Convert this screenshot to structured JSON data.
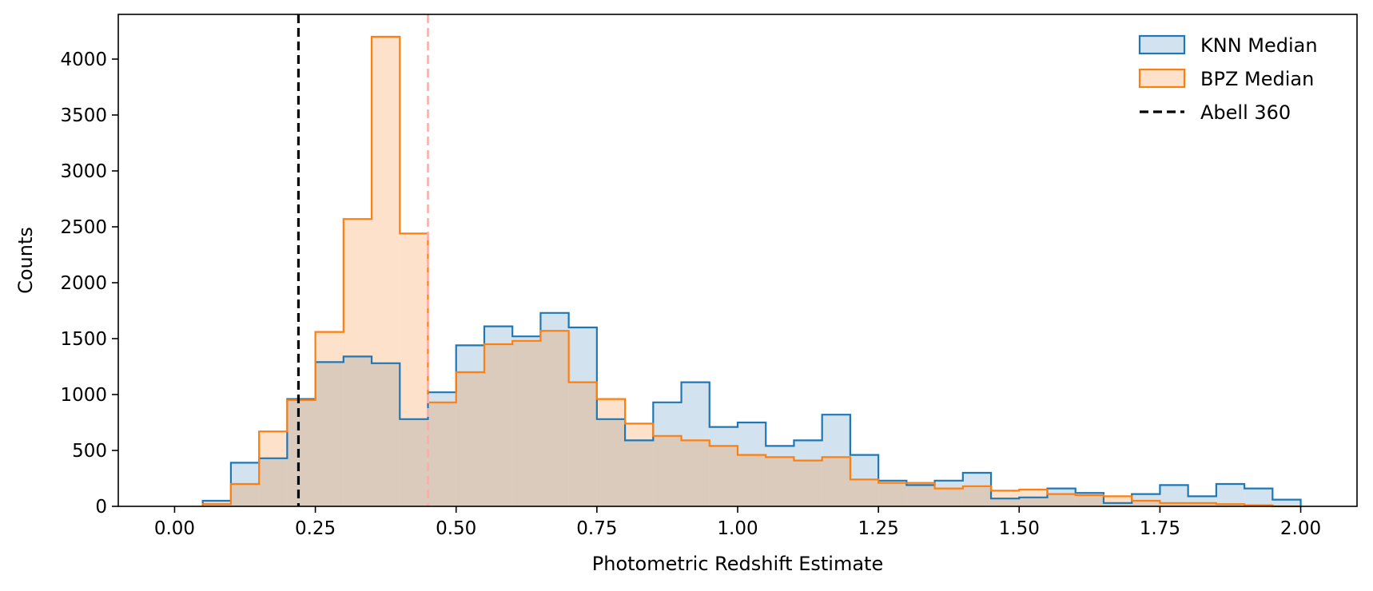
{
  "chart_data": {
    "type": "histogram",
    "xlabel": "Photometric Redshift Estimate",
    "ylabel": "Counts",
    "xlim": [
      -0.1,
      2.1
    ],
    "ylim": [
      0,
      4400
    ],
    "xticks": [
      0.0,
      0.25,
      0.5,
      0.75,
      1.0,
      1.25,
      1.5,
      1.75,
      2.0
    ],
    "xtick_labels": [
      "0.00",
      "0.25",
      "0.50",
      "0.75",
      "1.00",
      "1.25",
      "1.50",
      "1.75",
      "2.00"
    ],
    "yticks": [
      0,
      500,
      1000,
      1500,
      2000,
      2500,
      3000,
      3500,
      4000
    ],
    "ytick_labels": [
      "0",
      "500",
      "1000",
      "1500",
      "2000",
      "2500",
      "3000",
      "3500",
      "4000"
    ],
    "grid": false,
    "legend_position": "top-right",
    "bin_edges": [
      0.05,
      0.1,
      0.15,
      0.2,
      0.25,
      0.3,
      0.35,
      0.4,
      0.45,
      0.5,
      0.55,
      0.6,
      0.65,
      0.7,
      0.75,
      0.8,
      0.85,
      0.9,
      0.95,
      1.0,
      1.05,
      1.1,
      1.15,
      1.2,
      1.25,
      1.3,
      1.35,
      1.4,
      1.45,
      1.5,
      1.55,
      1.6,
      1.65,
      1.7,
      1.75,
      1.8,
      1.85,
      1.9,
      1.95,
      2.0
    ],
    "series": [
      {
        "name": "KNN Median",
        "edge_color": "#1f77b4",
        "fill_color": "#d2e3ef",
        "counts": [
          50,
          390,
          430,
          960,
          1290,
          1340,
          1280,
          780,
          1020,
          1440,
          1610,
          1520,
          1730,
          1600,
          780,
          590,
          930,
          1110,
          710,
          750,
          540,
          590,
          820,
          460,
          230,
          190,
          230,
          300,
          70,
          80,
          160,
          120,
          30,
          110,
          190,
          90,
          200,
          160,
          60
        ]
      },
      {
        "name": "BPZ Median",
        "edge_color": "#ff7f0e",
        "fill_color": "#fde1ca",
        "counts": [
          20,
          200,
          670,
          950,
          1560,
          2570,
          4200,
          2440,
          930,
          1200,
          1450,
          1480,
          1570,
          1110,
          960,
          740,
          630,
          590,
          540,
          460,
          440,
          410,
          440,
          240,
          210,
          210,
          160,
          180,
          140,
          150,
          110,
          100,
          90,
          50,
          30,
          30,
          20,
          10,
          0
        ]
      }
    ],
    "vlines": [
      {
        "name": "Abell 360",
        "x": 0.22,
        "color": "#000000",
        "style": "dashed"
      },
      {
        "x": 0.45,
        "color": "#f6b1aa",
        "style": "dashed"
      }
    ],
    "overlap_fill_color": "#dbcbbd"
  }
}
